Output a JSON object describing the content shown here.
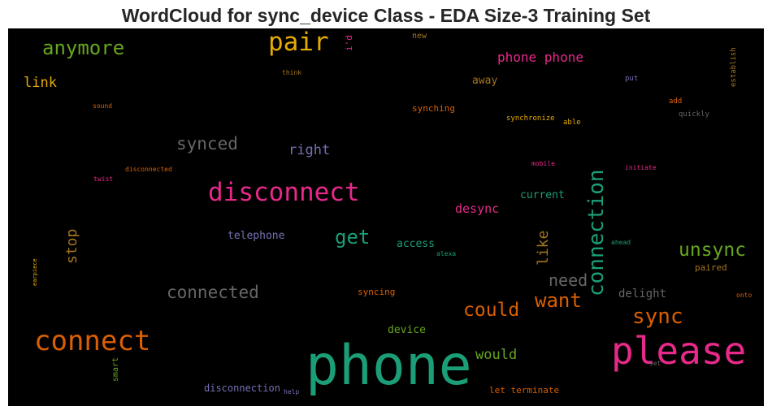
{
  "title": "WordCloud for sync_device Class - EDA Size-3 Training Set",
  "words": [
    {
      "text": "phone",
      "color": "#1b9e77"
    },
    {
      "text": "please",
      "color": "#e7298a"
    },
    {
      "text": "disconnect",
      "color": "#e7298a"
    },
    {
      "text": "connect",
      "color": "#d95f02"
    },
    {
      "text": "pair",
      "color": "#e6ab02"
    },
    {
      "text": "connection",
      "color": "#1b9e77"
    },
    {
      "text": "anymore",
      "color": "#66a61e"
    },
    {
      "text": "unsync",
      "color": "#66a61e"
    },
    {
      "text": "sync",
      "color": "#d95f02"
    },
    {
      "text": "want",
      "color": "#d95f02"
    },
    {
      "text": "could",
      "color": "#d95f02"
    },
    {
      "text": "get",
      "color": "#1b9e77"
    },
    {
      "text": "connected",
      "color": "#666666"
    },
    {
      "text": "synced",
      "color": "#666666"
    },
    {
      "text": "need",
      "color": "#666666"
    },
    {
      "text": "phone phone",
      "color": "#e7298a"
    },
    {
      "text": "right",
      "color": "#7570b3"
    },
    {
      "text": "stop",
      "color": "#a6761d"
    },
    {
      "text": "like",
      "color": "#a6761d"
    },
    {
      "text": "link",
      "color": "#e6ab02"
    },
    {
      "text": "would",
      "color": "#66a61e"
    },
    {
      "text": "desync",
      "color": "#e7298a"
    },
    {
      "text": "delight",
      "color": "#666666"
    },
    {
      "text": "telephone",
      "color": "#7570b3"
    },
    {
      "text": "current",
      "color": "#1b9e77"
    },
    {
      "text": "access",
      "color": "#1b9e77"
    },
    {
      "text": "away",
      "color": "#a6761d"
    },
    {
      "text": "device",
      "color": "#66a61e"
    },
    {
      "text": "syncing",
      "color": "#d95f02"
    },
    {
      "text": "synching",
      "color": "#d95f02"
    },
    {
      "text": "disconnection",
      "color": "#7570b3"
    },
    {
      "text": "let terminate",
      "color": "#d95f02"
    },
    {
      "text": "paired",
      "color": "#a6761d"
    },
    {
      "text": "i'd",
      "color": "#e7298a"
    },
    {
      "text": "new",
      "color": "#a6761d"
    },
    {
      "text": "smart",
      "color": "#66a61e"
    },
    {
      "text": "synchronize",
      "color": "#e6ab02"
    },
    {
      "text": "able",
      "color": "#e6ab02"
    },
    {
      "text": "add",
      "color": "#d95f02"
    },
    {
      "text": "quickly",
      "color": "#666666"
    },
    {
      "text": "put",
      "color": "#7570b3"
    },
    {
      "text": "establish",
      "color": "#a6761d"
    },
    {
      "text": "think",
      "color": "#a6761d"
    },
    {
      "text": "sound",
      "color": "#d95f02"
    },
    {
      "text": "disconnected",
      "color": "#d95f02"
    },
    {
      "text": "twist",
      "color": "#e7298a"
    },
    {
      "text": "mobile",
      "color": "#e7298a"
    },
    {
      "text": "initiate",
      "color": "#e7298a"
    },
    {
      "text": "ahead",
      "color": "#1b9e77"
    },
    {
      "text": "alexa",
      "color": "#1b9e77"
    },
    {
      "text": "onto",
      "color": "#d95f02"
    },
    {
      "text": "earpiece",
      "color": "#e6ab02"
    },
    {
      "text": "help",
      "color": "#7570b3"
    },
    {
      "text": "set",
      "color": "#666666"
    }
  ]
}
